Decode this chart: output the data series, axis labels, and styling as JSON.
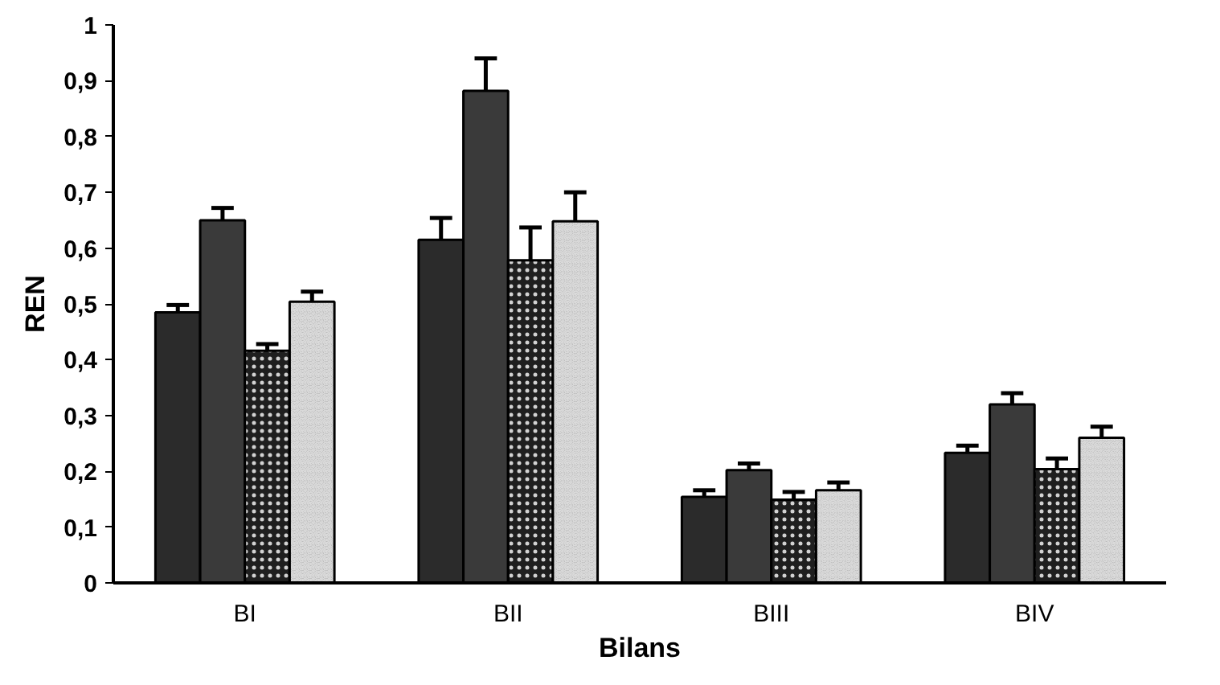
{
  "chart_data": {
    "type": "bar",
    "xlabel": "Bilans",
    "ylabel": "REN",
    "categories": [
      "BI",
      "BII",
      "BIII",
      "BIV"
    ],
    "series": [
      {
        "color": "#2b2b2b",
        "values": [
          0.485,
          0.615,
          0.154,
          0.233
        ],
        "errors": [
          [
            0.485,
            0.498
          ],
          [
            0.615,
            0.654
          ],
          [
            0.154,
            0.166
          ],
          [
            0.233,
            0.246
          ]
        ]
      },
      {
        "color": "#3a3a3a",
        "values": [
          0.65,
          0.882,
          0.202,
          0.32
        ],
        "errors": [
          [
            0.65,
            0.672
          ],
          [
            0.882,
            0.94
          ],
          [
            0.202,
            0.214
          ],
          [
            0.32,
            0.34
          ]
        ]
      },
      {
        "color": "#1f1f1f",
        "values": [
          0.416,
          0.578,
          0.149,
          0.204
        ],
        "errors": [
          [
            0.416,
            0.428
          ],
          [
            0.578,
            0.637
          ],
          [
            0.149,
            0.163
          ],
          [
            0.204,
            0.223
          ]
        ]
      },
      {
        "color": "#444444",
        "values": [
          0.504,
          0.648,
          0.166,
          0.26
        ],
        "errors": [
          [
            0.504,
            0.522
          ],
          [
            0.648,
            0.7
          ],
          [
            0.166,
            0.18
          ],
          [
            0.26,
            0.28
          ]
        ]
      }
    ],
    "ylim": [
      0,
      1
    ],
    "yticks": [
      0,
      {
        "value": 0.1,
        "label": "0,1"
      },
      {
        "value": 0.2,
        "label": "0,2"
      },
      {
        "value": 0.3,
        "label": "0,3"
      },
      {
        "value": 0.4,
        "label": "0,4"
      },
      {
        "value": 0.5,
        "label": "0,5"
      },
      {
        "value": 0.6,
        "label": "0,6"
      },
      {
        "value": 0.7,
        "label": "0,7"
      },
      {
        "value": 0.8,
        "label": "0,8"
      },
      {
        "value": 0.9,
        "label": "0,9"
      },
      1
    ],
    "grid": false
  }
}
